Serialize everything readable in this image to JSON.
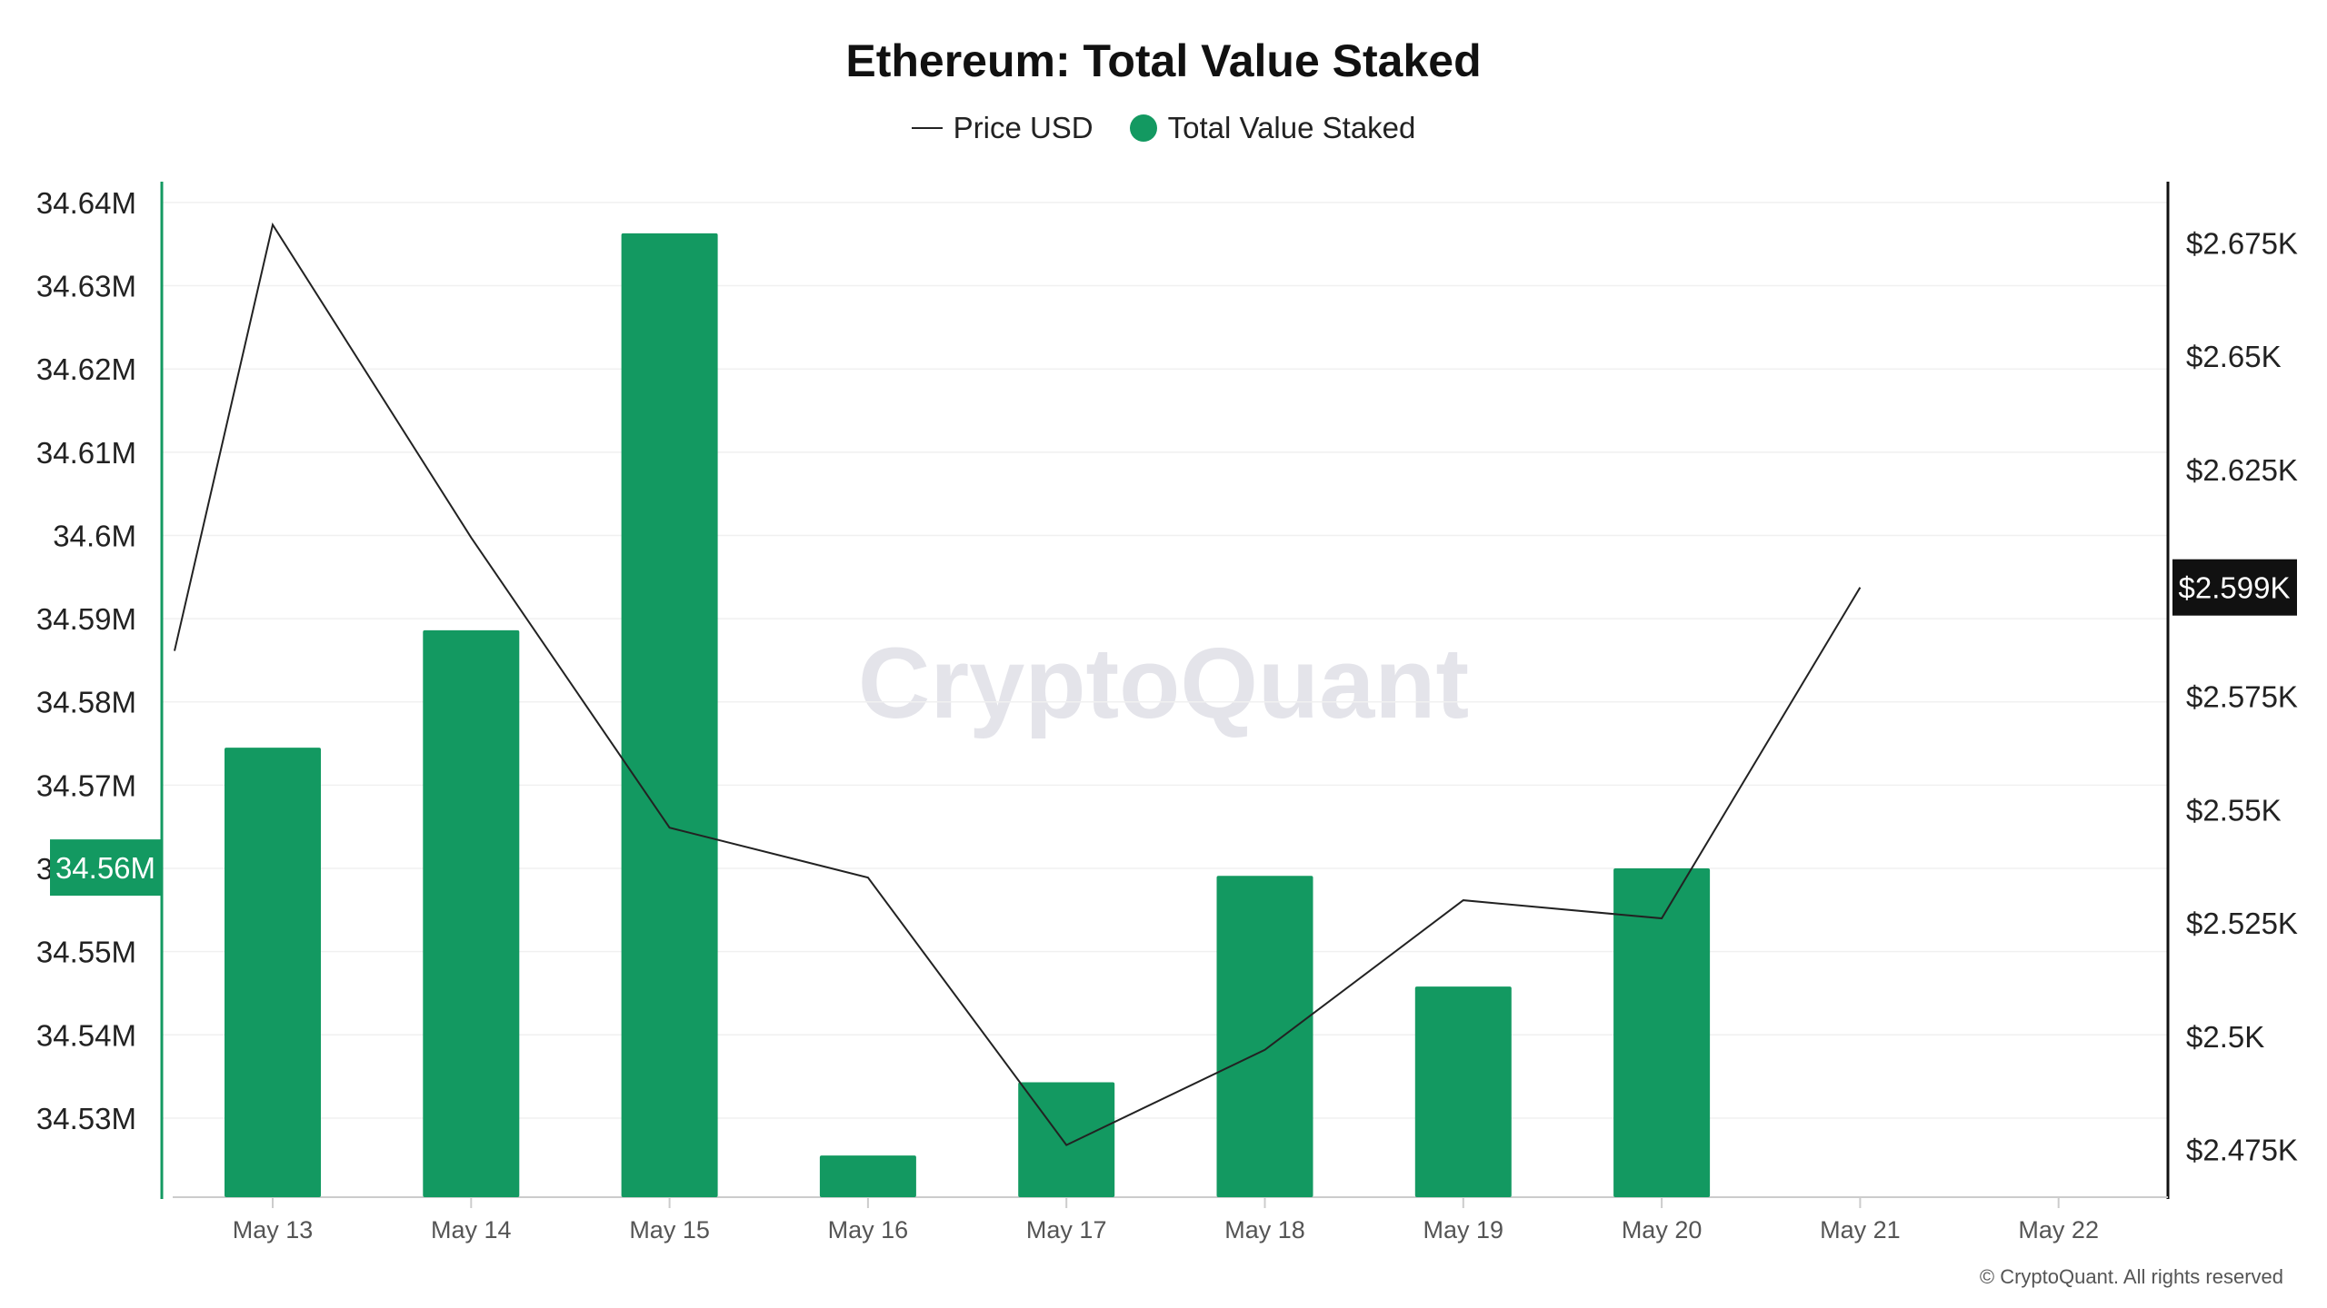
{
  "chart_data": {
    "type": "bar",
    "title": "Ethereum: Total Value Staked",
    "legend": [
      {
        "label": "Price USD",
        "kind": "line"
      },
      {
        "label": "Total Value Staked",
        "kind": "dot"
      }
    ],
    "categories": [
      "May 13",
      "May 14",
      "May 15",
      "May 16",
      "May 17",
      "May 18",
      "May 19",
      "May 20",
      "May 21",
      "May 22"
    ],
    "series": [
      {
        "name": "Total Value Staked",
        "type": "bar",
        "axis": "left",
        "color": "#139961",
        "values": [
          34.5745,
          34.5886,
          34.6363,
          34.5255,
          34.5343,
          34.5591,
          34.5458,
          34.56,
          null,
          null
        ]
      },
      {
        "name": "Price USD",
        "type": "line",
        "axis": "right",
        "color": "#222222",
        "values": [
          2.679,
          2.61,
          2.546,
          2.535,
          2.476,
          2.497,
          2.53,
          2.526,
          2.599,
          null
        ],
        "lead_in": 2.585
      }
    ],
    "y_left": {
      "ticks": [
        "34.53M",
        "34.54M",
        "34.55M",
        "34.56M",
        "34.57M",
        "34.58M",
        "34.59M",
        "34.6M",
        "34.61M",
        "34.62M",
        "34.63M",
        "34.64M"
      ],
      "tick_values": [
        34.53,
        34.54,
        34.55,
        34.56,
        34.57,
        34.58,
        34.59,
        34.6,
        34.61,
        34.62,
        34.63,
        34.64
      ],
      "range": [
        34.5205,
        34.6425
      ]
    },
    "y_right": {
      "ticks": [
        "$2.475K",
        "$2.5K",
        "$2.525K",
        "$2.55K",
        "$2.575K",
        "$2.6K",
        "$2.625K",
        "$2.65K",
        "$2.675K"
      ],
      "tick_values": [
        2.475,
        2.5,
        2.525,
        2.55,
        2.575,
        2.6,
        2.625,
        2.65,
        2.675
      ],
      "range": [
        2.4645,
        2.6885
      ]
    },
    "highlight_left": {
      "label": "34.56M",
      "value": 34.5601
    },
    "highlight_right": {
      "label": "$2.599K",
      "value": 2.599
    },
    "grid": "horizontal",
    "legend_position": "top-center"
  },
  "watermark": "CryptoQuant",
  "copyright": "© CryptoQuant. All rights reserved"
}
